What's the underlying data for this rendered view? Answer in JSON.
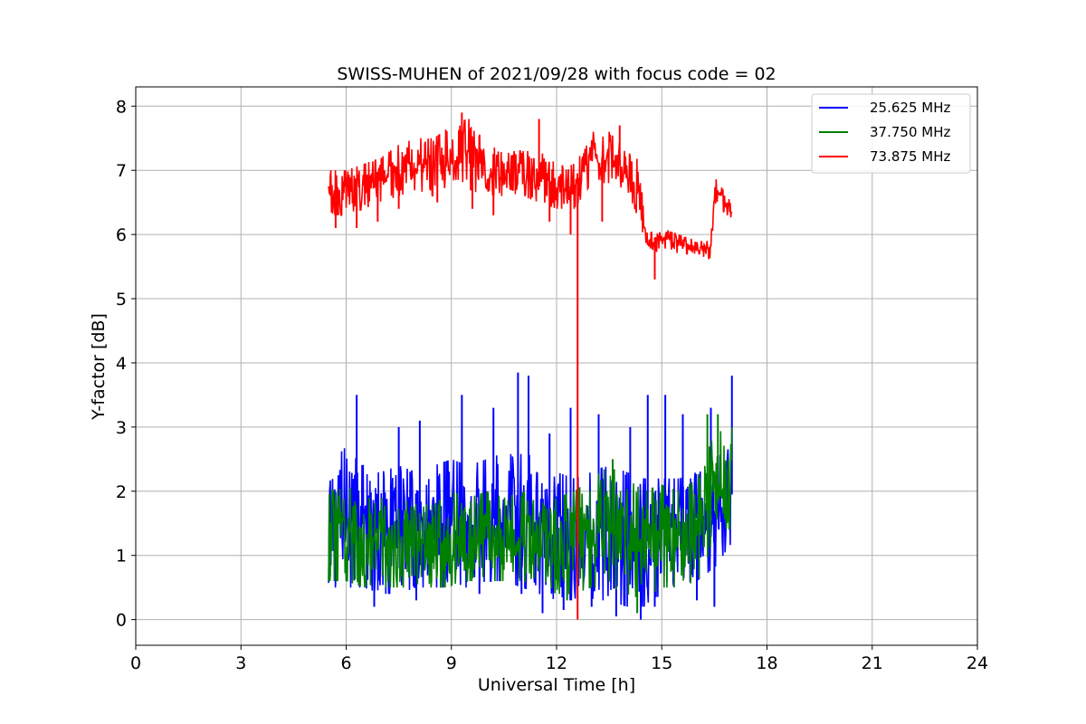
{
  "chart_data": {
    "type": "line",
    "title": "SWISS-MUHEN of 2021/09/28 with focus code = 02",
    "xlabel": "Universal Time [h]",
    "ylabel": "Y-factor [dB]",
    "xlim": [
      0,
      24
    ],
    "ylim": [
      -0.4,
      8.3
    ],
    "xticks": [
      "0",
      "3",
      "6",
      "9",
      "12",
      "15",
      "18",
      "21",
      "24"
    ],
    "yticks": [
      "0",
      "1",
      "2",
      "3",
      "4",
      "5",
      "6",
      "7",
      "8"
    ],
    "grid": true,
    "legend_position": "top-right",
    "series": [
      {
        "name": "25.625 MHz",
        "color": "#0000ff",
        "envelope": {
          "x": [
            5.5,
            6.0,
            6.5,
            7.0,
            7.5,
            8.0,
            8.5,
            9.0,
            9.5,
            10.0,
            10.5,
            11.0,
            11.5,
            12.0,
            12.5,
            13.0,
            13.5,
            14.0,
            14.5,
            15.0,
            15.5,
            16.0,
            16.5,
            17.0
          ],
          "high": [
            2.4,
            2.7,
            2.4,
            2.3,
            2.4,
            2.3,
            2.4,
            2.5,
            2.4,
            2.5,
            2.6,
            2.7,
            2.4,
            2.3,
            2.2,
            2.3,
            2.4,
            2.3,
            2.2,
            2.2,
            2.2,
            2.3,
            2.5,
            2.7
          ],
          "low": [
            0.5,
            0.5,
            0.5,
            0.4,
            0.4,
            0.5,
            0.5,
            0.5,
            0.5,
            0.6,
            0.6,
            0.5,
            0.4,
            0.3,
            0.3,
            0.3,
            0.3,
            0.2,
            0.2,
            0.4,
            0.5,
            0.6,
            0.8,
            1.2
          ]
        },
        "spikes": [
          [
            6.3,
            3.5
          ],
          [
            7.5,
            3.0
          ],
          [
            8.1,
            3.1
          ],
          [
            9.3,
            3.5
          ],
          [
            10.2,
            3.3
          ],
          [
            10.9,
            3.85
          ],
          [
            11.2,
            3.8
          ],
          [
            11.8,
            2.9
          ],
          [
            12.4,
            3.3
          ],
          [
            13.2,
            3.2
          ],
          [
            14.1,
            3.0
          ],
          [
            14.6,
            3.5
          ],
          [
            15.1,
            3.5
          ],
          [
            15.6,
            3.2
          ],
          [
            16.4,
            3.3
          ],
          [
            17.0,
            3.8
          ]
        ],
        "dips": [
          [
            6.8,
            0.2
          ],
          [
            8.0,
            0.3
          ],
          [
            9.8,
            0.4
          ],
          [
            11.0,
            0.4
          ],
          [
            11.6,
            0.1
          ],
          [
            12.2,
            0.15
          ],
          [
            13.0,
            0.2
          ],
          [
            13.7,
            0.05
          ],
          [
            14.4,
            0.0
          ],
          [
            14.8,
            0.2
          ],
          [
            16.0,
            0.3
          ],
          [
            16.5,
            0.2
          ]
        ]
      },
      {
        "name": "37.750 MHz",
        "color": "#008000",
        "envelope": {
          "x": [
            5.5,
            6.0,
            6.5,
            7.0,
            7.5,
            8.0,
            8.5,
            9.0,
            9.5,
            10.0,
            10.5,
            11.0,
            11.5,
            12.0,
            12.5,
            13.0,
            13.5,
            14.0,
            14.5,
            15.0,
            15.5,
            16.0,
            16.5,
            17.0
          ],
          "high": [
            2.0,
            2.1,
            1.9,
            1.9,
            1.9,
            1.8,
            1.8,
            2.0,
            1.9,
            2.0,
            1.9,
            2.0,
            1.8,
            1.9,
            2.0,
            2.2,
            2.4,
            2.2,
            2.0,
            2.1,
            2.0,
            2.2,
            2.9,
            3.0
          ],
          "low": [
            0.6,
            0.6,
            0.5,
            0.5,
            0.5,
            0.5,
            0.5,
            0.5,
            0.6,
            0.6,
            0.6,
            0.6,
            0.5,
            0.4,
            0.4,
            0.5,
            0.5,
            0.4,
            0.3,
            0.5,
            0.5,
            0.6,
            0.9,
            1.5
          ]
        },
        "spikes": [
          [
            13.6,
            2.5
          ],
          [
            16.3,
            3.2
          ],
          [
            16.6,
            3.2
          ]
        ],
        "dips": [
          [
            14.3,
            0.1
          ],
          [
            12.3,
            0.3
          ]
        ]
      },
      {
        "name": "73.875 MHz",
        "color": "#ff0000",
        "envelope": {
          "x": [
            5.5,
            6.0,
            6.5,
            7.0,
            7.5,
            8.0,
            8.5,
            9.0,
            9.5,
            10.0,
            10.5,
            11.0,
            11.5,
            12.0,
            12.5,
            13.0,
            13.5,
            14.0,
            14.3,
            14.5,
            14.8,
            15.0,
            15.5,
            16.0,
            16.4,
            16.5,
            17.0
          ],
          "high": [
            7.0,
            7.0,
            7.1,
            7.2,
            7.4,
            7.5,
            7.5,
            7.7,
            7.8,
            7.4,
            7.3,
            7.3,
            7.3,
            7.1,
            7.1,
            7.6,
            7.6,
            7.3,
            7.2,
            6.4,
            6.2,
            6.1,
            6.0,
            5.9,
            5.9,
            6.9,
            6.5
          ],
          "low": [
            6.3,
            6.3,
            6.4,
            6.5,
            6.6,
            6.7,
            6.6,
            6.8,
            6.7,
            6.6,
            6.6,
            6.6,
            6.5,
            6.4,
            6.4,
            6.8,
            6.8,
            6.7,
            6.3,
            5.9,
            5.7,
            5.8,
            5.7,
            5.7,
            5.6,
            6.5,
            6.2
          ]
        },
        "spikes": [
          [
            9.3,
            7.9
          ],
          [
            11.5,
            7.8
          ],
          [
            13.8,
            7.7
          ]
        ],
        "dips": [
          [
            5.7,
            6.1
          ],
          [
            6.3,
            6.1
          ],
          [
            6.9,
            6.2
          ],
          [
            7.5,
            6.4
          ],
          [
            8.6,
            6.5
          ],
          [
            9.6,
            6.4
          ],
          [
            10.2,
            6.3
          ],
          [
            11.8,
            6.2
          ],
          [
            12.4,
            6.0
          ],
          [
            12.6,
            0.0
          ],
          [
            13.3,
            6.2
          ],
          [
            14.8,
            5.3
          ]
        ]
      }
    ]
  }
}
